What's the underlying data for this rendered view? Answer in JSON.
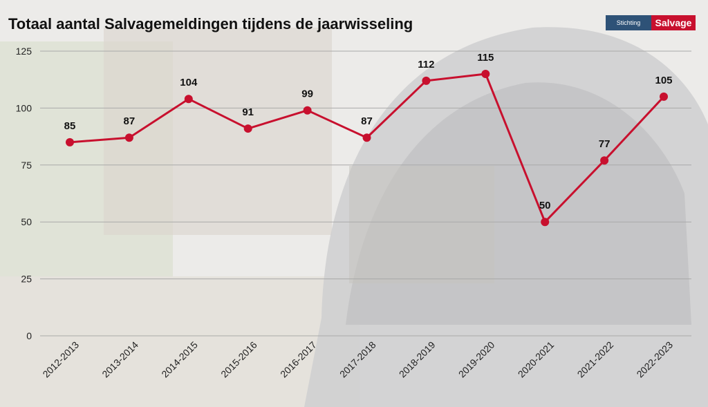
{
  "header": {
    "title": "Totaal aantal Salvagemeldingen tijdens de jaarwisseling"
  },
  "logo": {
    "left_text": "Stichting",
    "right_text": "Salvage"
  },
  "colors": {
    "line": "#c8102e",
    "marker": "#c8102e",
    "grid": "#a9a9a9",
    "background": "#efefef"
  },
  "chart_data": {
    "type": "line",
    "title": "Totaal aantal Salvagemeldingen tijdens de jaarwisseling",
    "xlabel": "",
    "ylabel": "",
    "categories": [
      "2012-2013",
      "2013-2014",
      "2014-2015",
      "2015-2016",
      "2016-2017",
      "2017-2018",
      "2018-2019",
      "2019-2020",
      "2020-2021",
      "2021-2022",
      "2022-2023"
    ],
    "series": [
      {
        "values": [
          85,
          87,
          104,
          91,
          99,
          87,
          112,
          115,
          50,
          77,
          105
        ]
      }
    ],
    "ylim": [
      0,
      125
    ],
    "yticks": [
      0,
      25,
      50,
      75,
      100,
      125
    ],
    "grid": true,
    "legend": "none"
  }
}
